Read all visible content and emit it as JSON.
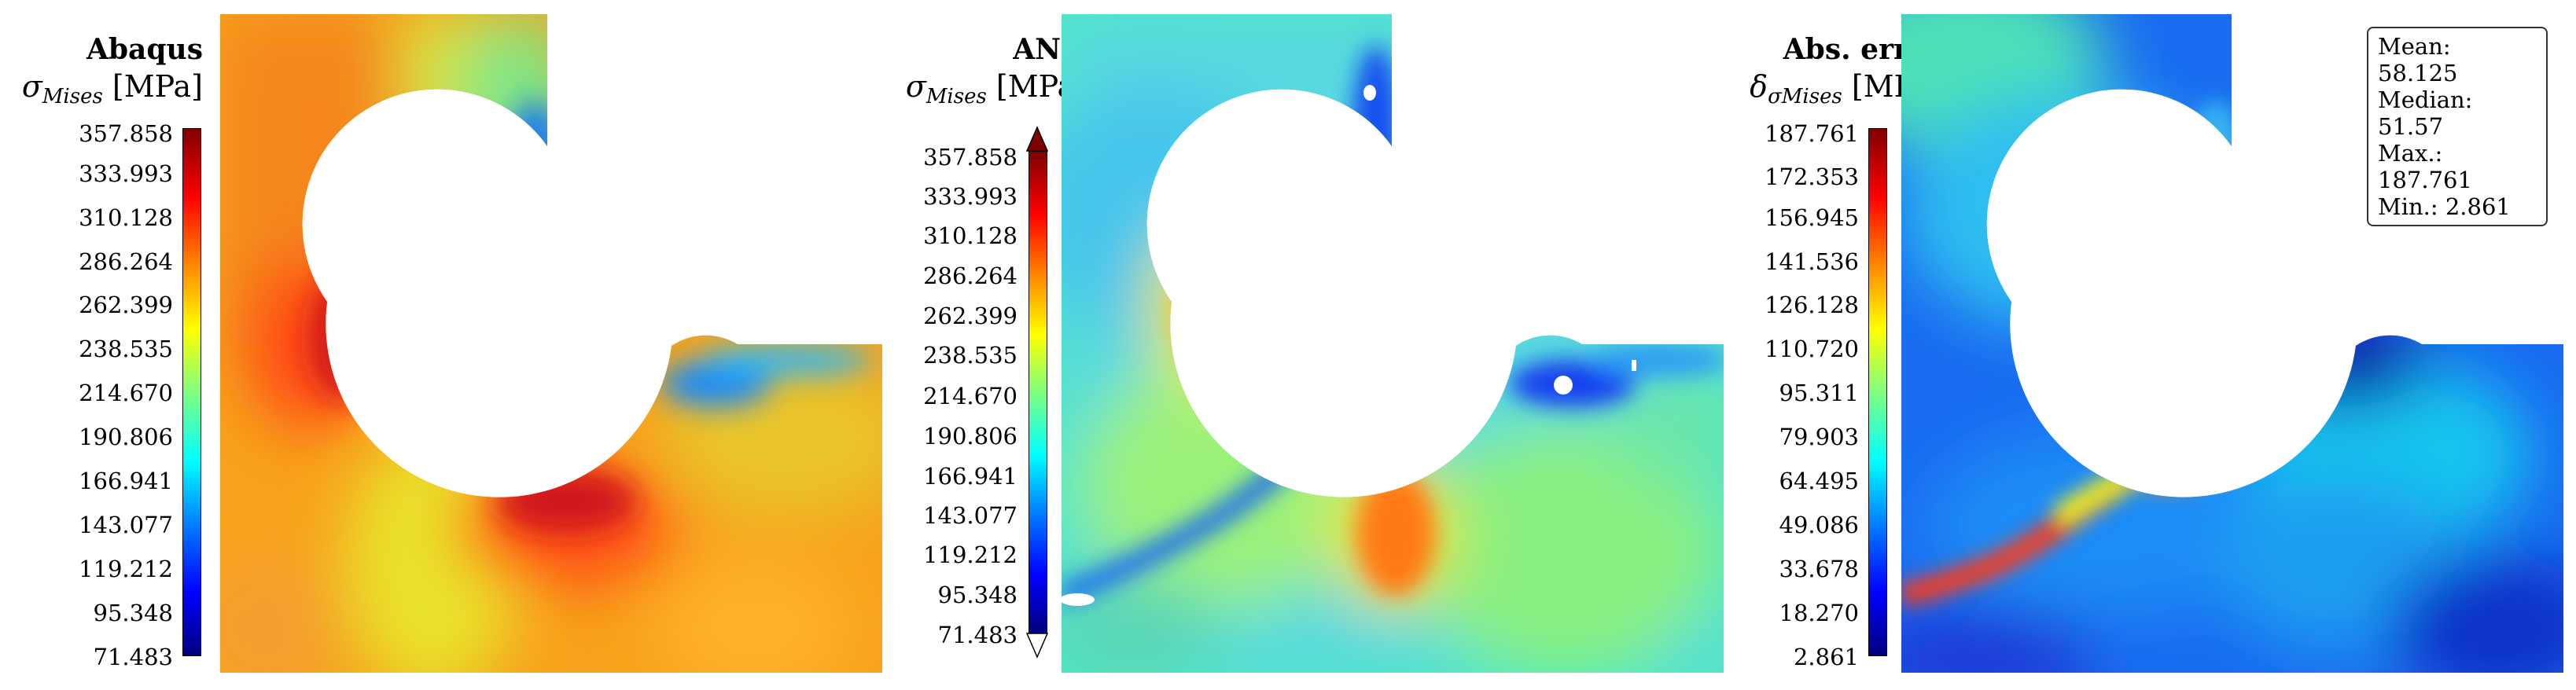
{
  "panels": [
    {
      "title": "Abaqus",
      "symbol": "σ",
      "subscript": "Mises",
      "unit": "[MPa]",
      "ticks": [
        "357.858",
        "333.993",
        "310.128",
        "286.264",
        "262.399",
        "238.535",
        "214.670",
        "190.806",
        "166.941",
        "143.077",
        "119.212",
        "95.348",
        "71.483"
      ]
    },
    {
      "title": "ANN",
      "symbol": "σ",
      "subscript": "Mises",
      "unit": "[MPa]",
      "ticks": [
        "357.858",
        "333.993",
        "310.128",
        "286.264",
        "262.399",
        "238.535",
        "214.670",
        "190.806",
        "166.941",
        "143.077",
        "119.212",
        "95.348",
        "71.483"
      ]
    },
    {
      "title": "Abs. error",
      "symbol": "δ",
      "subscript": "σMises",
      "unit": "[MPa]",
      "ticks": [
        "187.761",
        "172.353",
        "156.945",
        "141.536",
        "126.128",
        "110.720",
        "95.311",
        "79.903",
        "64.495",
        "49.086",
        "33.678",
        "18.270",
        "2.861"
      ]
    }
  ],
  "stats": {
    "mean": "Mean: 58.125",
    "median": "Median: 51.57",
    "max": "Max.: 187.761",
    "min": "Min.: 2.861"
  },
  "colormap": [
    "#00007f",
    "#0000ff",
    "#007fff",
    "#00ffff",
    "#7fff7f",
    "#ffff00",
    "#ff7f00",
    "#ff0000",
    "#7f0000"
  ]
}
